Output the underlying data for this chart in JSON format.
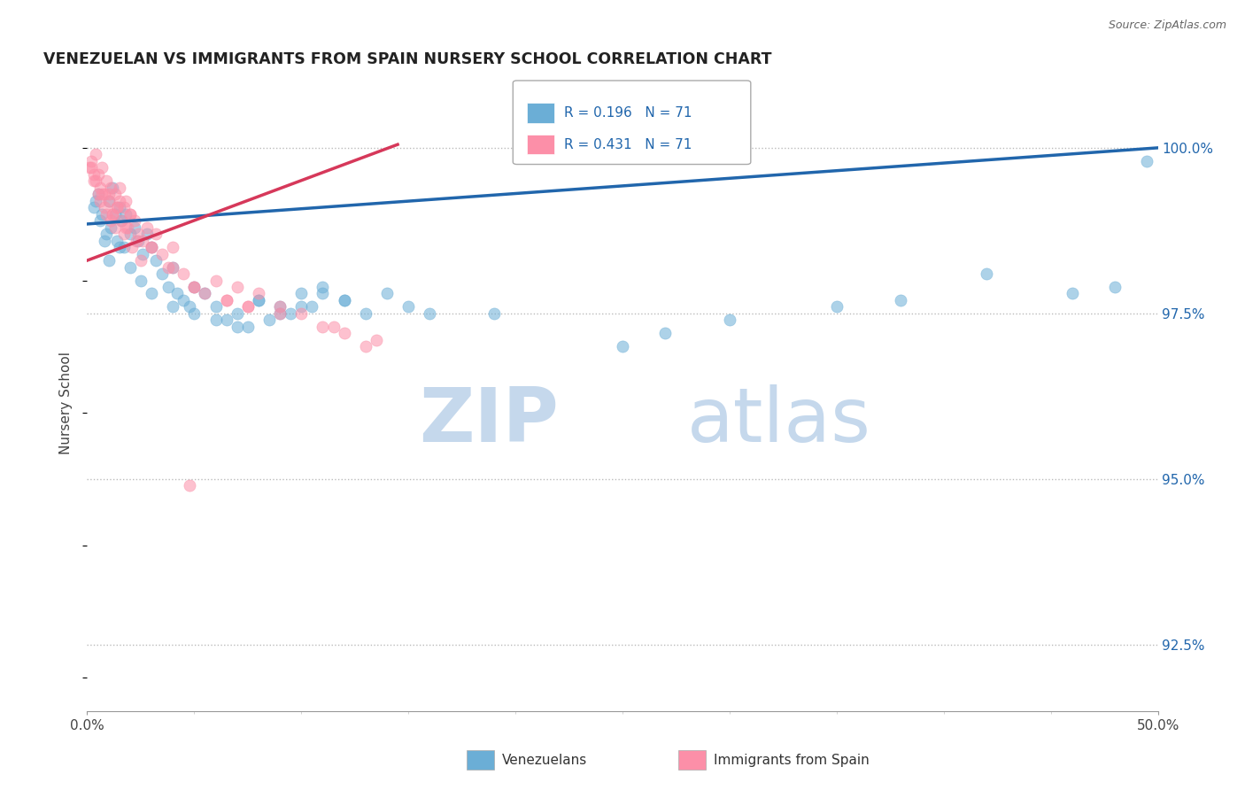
{
  "title": "VENEZUELAN VS IMMIGRANTS FROM SPAIN NURSERY SCHOOL CORRELATION CHART",
  "source": "Source: ZipAtlas.com",
  "ylabel": "Nursery School",
  "legend_label1": "Venezuelans",
  "legend_label2": "Immigrants from Spain",
  "R1": 0.196,
  "N1": 71,
  "R2": 0.431,
  "N2": 71,
  "color_blue": "#6BAED6",
  "color_pink": "#FC8FA8",
  "color_trend_blue": "#2166AC",
  "color_trend_pink": "#D6385A",
  "watermark_zip": "ZIP",
  "watermark_atlas": "atlas",
  "watermark_color": "#C5D8EC",
  "x_min": 0.0,
  "x_max": 50.0,
  "y_min": 91.5,
  "y_max": 100.8,
  "yticks": [
    92.5,
    95.0,
    97.5,
    100.0
  ],
  "blue_trend_x0": 0.0,
  "blue_trend_y0": 98.85,
  "blue_trend_x1": 50.0,
  "blue_trend_y1": 100.0,
  "pink_trend_x0": 0.0,
  "pink_trend_y0": 98.3,
  "pink_trend_x1": 14.5,
  "pink_trend_y1": 100.05,
  "blue_scatter_x": [
    0.3,
    0.5,
    0.7,
    0.9,
    1.0,
    1.1,
    1.2,
    1.3,
    1.4,
    1.5,
    1.6,
    1.7,
    1.8,
    2.0,
    2.2,
    2.4,
    2.6,
    2.8,
    3.0,
    3.2,
    3.5,
    3.8,
    4.0,
    4.2,
    4.5,
    4.8,
    5.0,
    5.5,
    6.0,
    6.5,
    7.0,
    7.5,
    8.0,
    8.5,
    9.0,
    9.5,
    10.0,
    10.5,
    11.0,
    12.0,
    13.0,
    14.0,
    15.0,
    16.0,
    0.4,
    0.6,
    0.8,
    1.0,
    1.5,
    2.0,
    2.5,
    3.0,
    4.0,
    5.0,
    6.0,
    7.0,
    8.0,
    9.0,
    10.0,
    11.0,
    12.0,
    25.0,
    35.0,
    38.0,
    42.0,
    46.0,
    48.0,
    49.5,
    19.0,
    27.0,
    30.0
  ],
  "blue_scatter_y": [
    99.1,
    99.3,
    99.0,
    98.7,
    99.2,
    98.8,
    99.4,
    99.0,
    98.6,
    99.1,
    98.9,
    98.5,
    99.0,
    98.7,
    98.8,
    98.6,
    98.4,
    98.7,
    98.5,
    98.3,
    98.1,
    97.9,
    98.2,
    97.8,
    97.7,
    97.6,
    97.9,
    97.8,
    97.6,
    97.4,
    97.5,
    97.3,
    97.7,
    97.4,
    97.6,
    97.5,
    97.8,
    97.6,
    97.9,
    97.7,
    97.5,
    97.8,
    97.6,
    97.5,
    99.2,
    98.9,
    98.6,
    98.3,
    98.5,
    98.2,
    98.0,
    97.8,
    97.6,
    97.5,
    97.4,
    97.3,
    97.7,
    97.5,
    97.6,
    97.8,
    97.7,
    97.0,
    97.6,
    97.7,
    98.1,
    97.8,
    97.9,
    99.8,
    97.5,
    97.2,
    97.4
  ],
  "pink_scatter_x": [
    0.1,
    0.2,
    0.3,
    0.4,
    0.5,
    0.6,
    0.7,
    0.8,
    0.9,
    1.0,
    1.1,
    1.2,
    1.3,
    1.4,
    1.5,
    1.6,
    1.7,
    1.8,
    1.9,
    2.0,
    2.2,
    2.4,
    2.6,
    2.8,
    3.0,
    3.2,
    3.5,
    3.8,
    4.0,
    4.5,
    5.0,
    5.5,
    6.0,
    6.5,
    7.0,
    7.5,
    8.0,
    9.0,
    10.0,
    11.0,
    12.0,
    13.0,
    0.3,
    0.5,
    0.8,
    1.0,
    1.2,
    1.5,
    1.8,
    2.0,
    2.3,
    0.4,
    0.6,
    0.9,
    1.1,
    1.4,
    1.7,
    0.2,
    0.7,
    1.3,
    2.1,
    2.5,
    3.0,
    4.0,
    5.0,
    6.5,
    7.5,
    9.0,
    11.5,
    13.5,
    4.8
  ],
  "pink_scatter_y": [
    99.7,
    99.8,
    99.5,
    99.9,
    99.6,
    99.4,
    99.7,
    99.3,
    99.5,
    99.2,
    99.4,
    99.0,
    99.3,
    99.1,
    99.4,
    98.9,
    99.1,
    99.2,
    98.8,
    99.0,
    98.9,
    98.7,
    98.6,
    98.8,
    98.5,
    98.7,
    98.4,
    98.2,
    98.5,
    98.1,
    97.9,
    97.8,
    98.0,
    97.7,
    97.9,
    97.6,
    97.8,
    97.6,
    97.5,
    97.3,
    97.2,
    97.0,
    99.6,
    99.3,
    99.1,
    99.3,
    99.0,
    99.2,
    98.8,
    99.0,
    98.6,
    99.5,
    99.2,
    99.0,
    98.9,
    99.1,
    98.7,
    99.7,
    99.3,
    98.8,
    98.5,
    98.3,
    98.5,
    98.2,
    97.9,
    97.7,
    97.6,
    97.5,
    97.3,
    97.1,
    94.9
  ]
}
